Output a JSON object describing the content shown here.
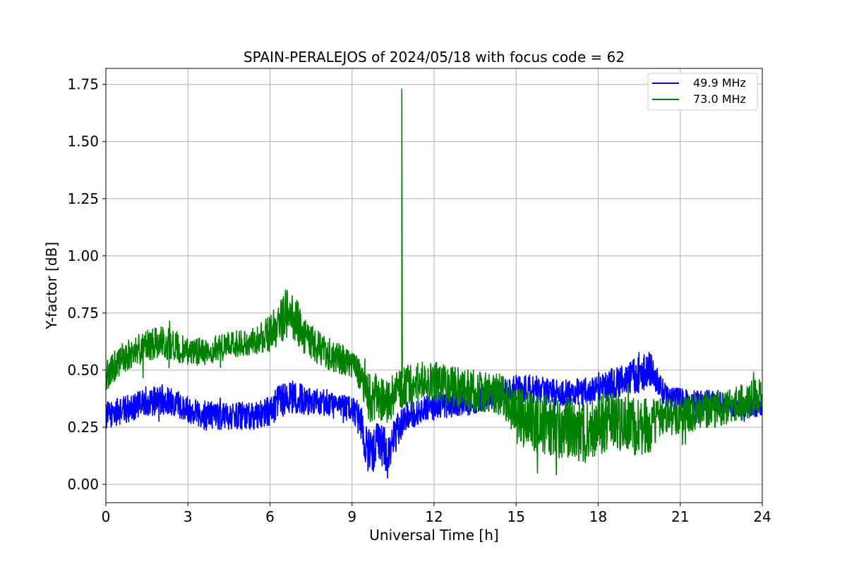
{
  "chart_data": {
    "type": "line",
    "title": "SPAIN-PERALEJOS of 2024/05/18 with focus code = 62",
    "xlabel": "Universal Time [h]",
    "ylabel": "Y-factor [dB]",
    "xlim": [
      0,
      24
    ],
    "ylim": [
      -0.08,
      1.82
    ],
    "xticks": [
      0,
      3,
      6,
      9,
      12,
      15,
      18,
      21,
      24
    ],
    "yticks": [
      0.0,
      0.25,
      0.5,
      0.75,
      1.0,
      1.25,
      1.5,
      1.75
    ],
    "ytick_labels": [
      "0.00",
      "0.25",
      "0.50",
      "0.75",
      "1.00",
      "1.25",
      "1.50",
      "1.75"
    ],
    "grid": true,
    "legend_position": "top-right",
    "series": [
      {
        "name": "49.9 MHz",
        "color": "#0000ff",
        "x": [
          0,
          0.5,
          1,
          1.5,
          2,
          2.5,
          3,
          3.5,
          4,
          4.5,
          5,
          5.5,
          6,
          6.3,
          6.6,
          6.9,
          7.2,
          7.5,
          8,
          8.5,
          9,
          9.3,
          9.5,
          9.8,
          10,
          10.3,
          10.6,
          11,
          11.5,
          12,
          12.5,
          13,
          13.5,
          14,
          14.5,
          15,
          15.5,
          16,
          16.5,
          17,
          17.5,
          18,
          18.5,
          19,
          19.5,
          19.9,
          20.2,
          20.5,
          21,
          21.5,
          22,
          22.5,
          23,
          23.5,
          24
        ],
        "mean": [
          0.3,
          0.32,
          0.34,
          0.36,
          0.37,
          0.36,
          0.33,
          0.31,
          0.3,
          0.3,
          0.3,
          0.3,
          0.32,
          0.35,
          0.38,
          0.38,
          0.37,
          0.36,
          0.36,
          0.35,
          0.33,
          0.28,
          0.16,
          0.14,
          0.2,
          0.12,
          0.22,
          0.3,
          0.32,
          0.34,
          0.35,
          0.36,
          0.36,
          0.38,
          0.4,
          0.42,
          0.42,
          0.41,
          0.4,
          0.4,
          0.41,
          0.42,
          0.44,
          0.46,
          0.48,
          0.5,
          0.44,
          0.38,
          0.37,
          0.36,
          0.37,
          0.36,
          0.33,
          0.33,
          0.34
        ],
        "amp": [
          0.06,
          0.06,
          0.06,
          0.06,
          0.07,
          0.06,
          0.06,
          0.06,
          0.06,
          0.06,
          0.06,
          0.06,
          0.07,
          0.08,
          0.08,
          0.07,
          0.07,
          0.06,
          0.06,
          0.05,
          0.05,
          0.08,
          0.1,
          0.1,
          0.1,
          0.1,
          0.08,
          0.06,
          0.06,
          0.06,
          0.06,
          0.06,
          0.06,
          0.06,
          0.06,
          0.06,
          0.06,
          0.06,
          0.06,
          0.06,
          0.06,
          0.07,
          0.07,
          0.07,
          0.08,
          0.08,
          0.06,
          0.05,
          0.05,
          0.05,
          0.05,
          0.05,
          0.04,
          0.04,
          0.04
        ]
      },
      {
        "name": "73.0 MHz",
        "color": "#008000",
        "x": [
          0,
          0.5,
          1,
          1.5,
          2,
          2.5,
          3,
          3.5,
          4,
          4.5,
          5,
          5.5,
          6,
          6.3,
          6.6,
          6.9,
          7.2,
          7.5,
          8,
          8.5,
          9,
          9.3,
          9.5,
          9.8,
          10,
          10.3,
          10.6,
          11,
          11.5,
          12,
          12.5,
          13,
          13.5,
          14,
          14.5,
          15,
          15.5,
          16,
          16.5,
          17,
          17.5,
          18,
          18.5,
          19,
          19.5,
          19.9,
          20.2,
          20.5,
          21,
          21.5,
          22,
          22.5,
          23,
          23.5,
          24
        ],
        "mean": [
          0.47,
          0.54,
          0.58,
          0.61,
          0.62,
          0.61,
          0.58,
          0.58,
          0.59,
          0.61,
          0.62,
          0.63,
          0.66,
          0.7,
          0.75,
          0.73,
          0.67,
          0.62,
          0.58,
          0.55,
          0.53,
          0.48,
          0.38,
          0.38,
          0.36,
          0.36,
          0.4,
          0.43,
          0.45,
          0.45,
          0.43,
          0.42,
          0.41,
          0.4,
          0.39,
          0.3,
          0.28,
          0.26,
          0.24,
          0.25,
          0.22,
          0.26,
          0.28,
          0.26,
          0.25,
          0.25,
          0.3,
          0.3,
          0.3,
          0.31,
          0.32,
          0.33,
          0.35,
          0.37,
          0.38
        ],
        "amp": [
          0.07,
          0.07,
          0.07,
          0.07,
          0.07,
          0.07,
          0.06,
          0.06,
          0.06,
          0.06,
          0.06,
          0.06,
          0.08,
          0.1,
          0.11,
          0.1,
          0.09,
          0.08,
          0.07,
          0.07,
          0.07,
          0.08,
          0.11,
          0.11,
          0.11,
          0.1,
          0.09,
          0.09,
          0.09,
          0.09,
          0.09,
          0.09,
          0.09,
          0.09,
          0.1,
          0.12,
          0.13,
          0.13,
          0.13,
          0.13,
          0.13,
          0.13,
          0.13,
          0.13,
          0.13,
          0.13,
          0.09,
          0.08,
          0.08,
          0.08,
          0.08,
          0.08,
          0.08,
          0.08,
          0.08
        ],
        "spike": {
          "x": 10.82,
          "y": 1.73
        }
      }
    ]
  }
}
